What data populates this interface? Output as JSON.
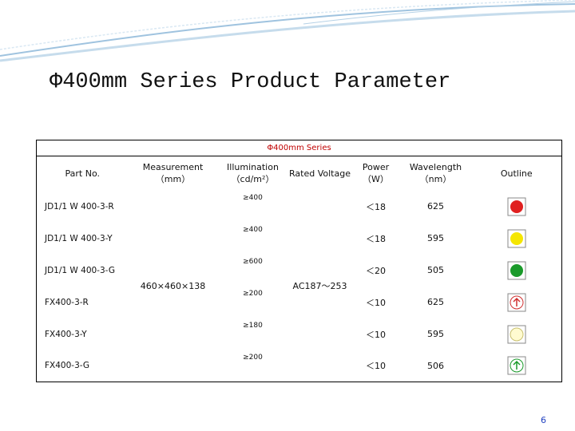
{
  "header": {
    "title": "Φ400mm Series Product Parameter"
  },
  "table": {
    "caption": "Φ400mm Series",
    "columns": [
      "Part No.",
      "Measurement（mm）",
      "Illumination（cd/m²）",
      "Rated Voltage",
      "Power（W）",
      "Wavelength（nm）",
      "Outline"
    ],
    "measurement": "460×460×138",
    "rated_voltage": "AC187～253",
    "rows": [
      [
        "JD1/1 W 400-3-R",
        "≥400",
        "＜18",
        "625"
      ],
      [
        "JD1/1 W 400-3-Y",
        "≥400",
        "＜18",
        "595"
      ],
      [
        "JD1/1 W 400-3-G",
        "≥600",
        "＜20",
        "505"
      ],
      [
        "FX400-3-R",
        "≥200",
        "＜10",
        "625"
      ],
      [
        "FX400-3-Y",
        "≥180",
        "＜10",
        "595"
      ],
      [
        "FX400-3-G",
        "≥200",
        "＜10",
        "506"
      ]
    ]
  },
  "footer": {
    "page": "6"
  }
}
